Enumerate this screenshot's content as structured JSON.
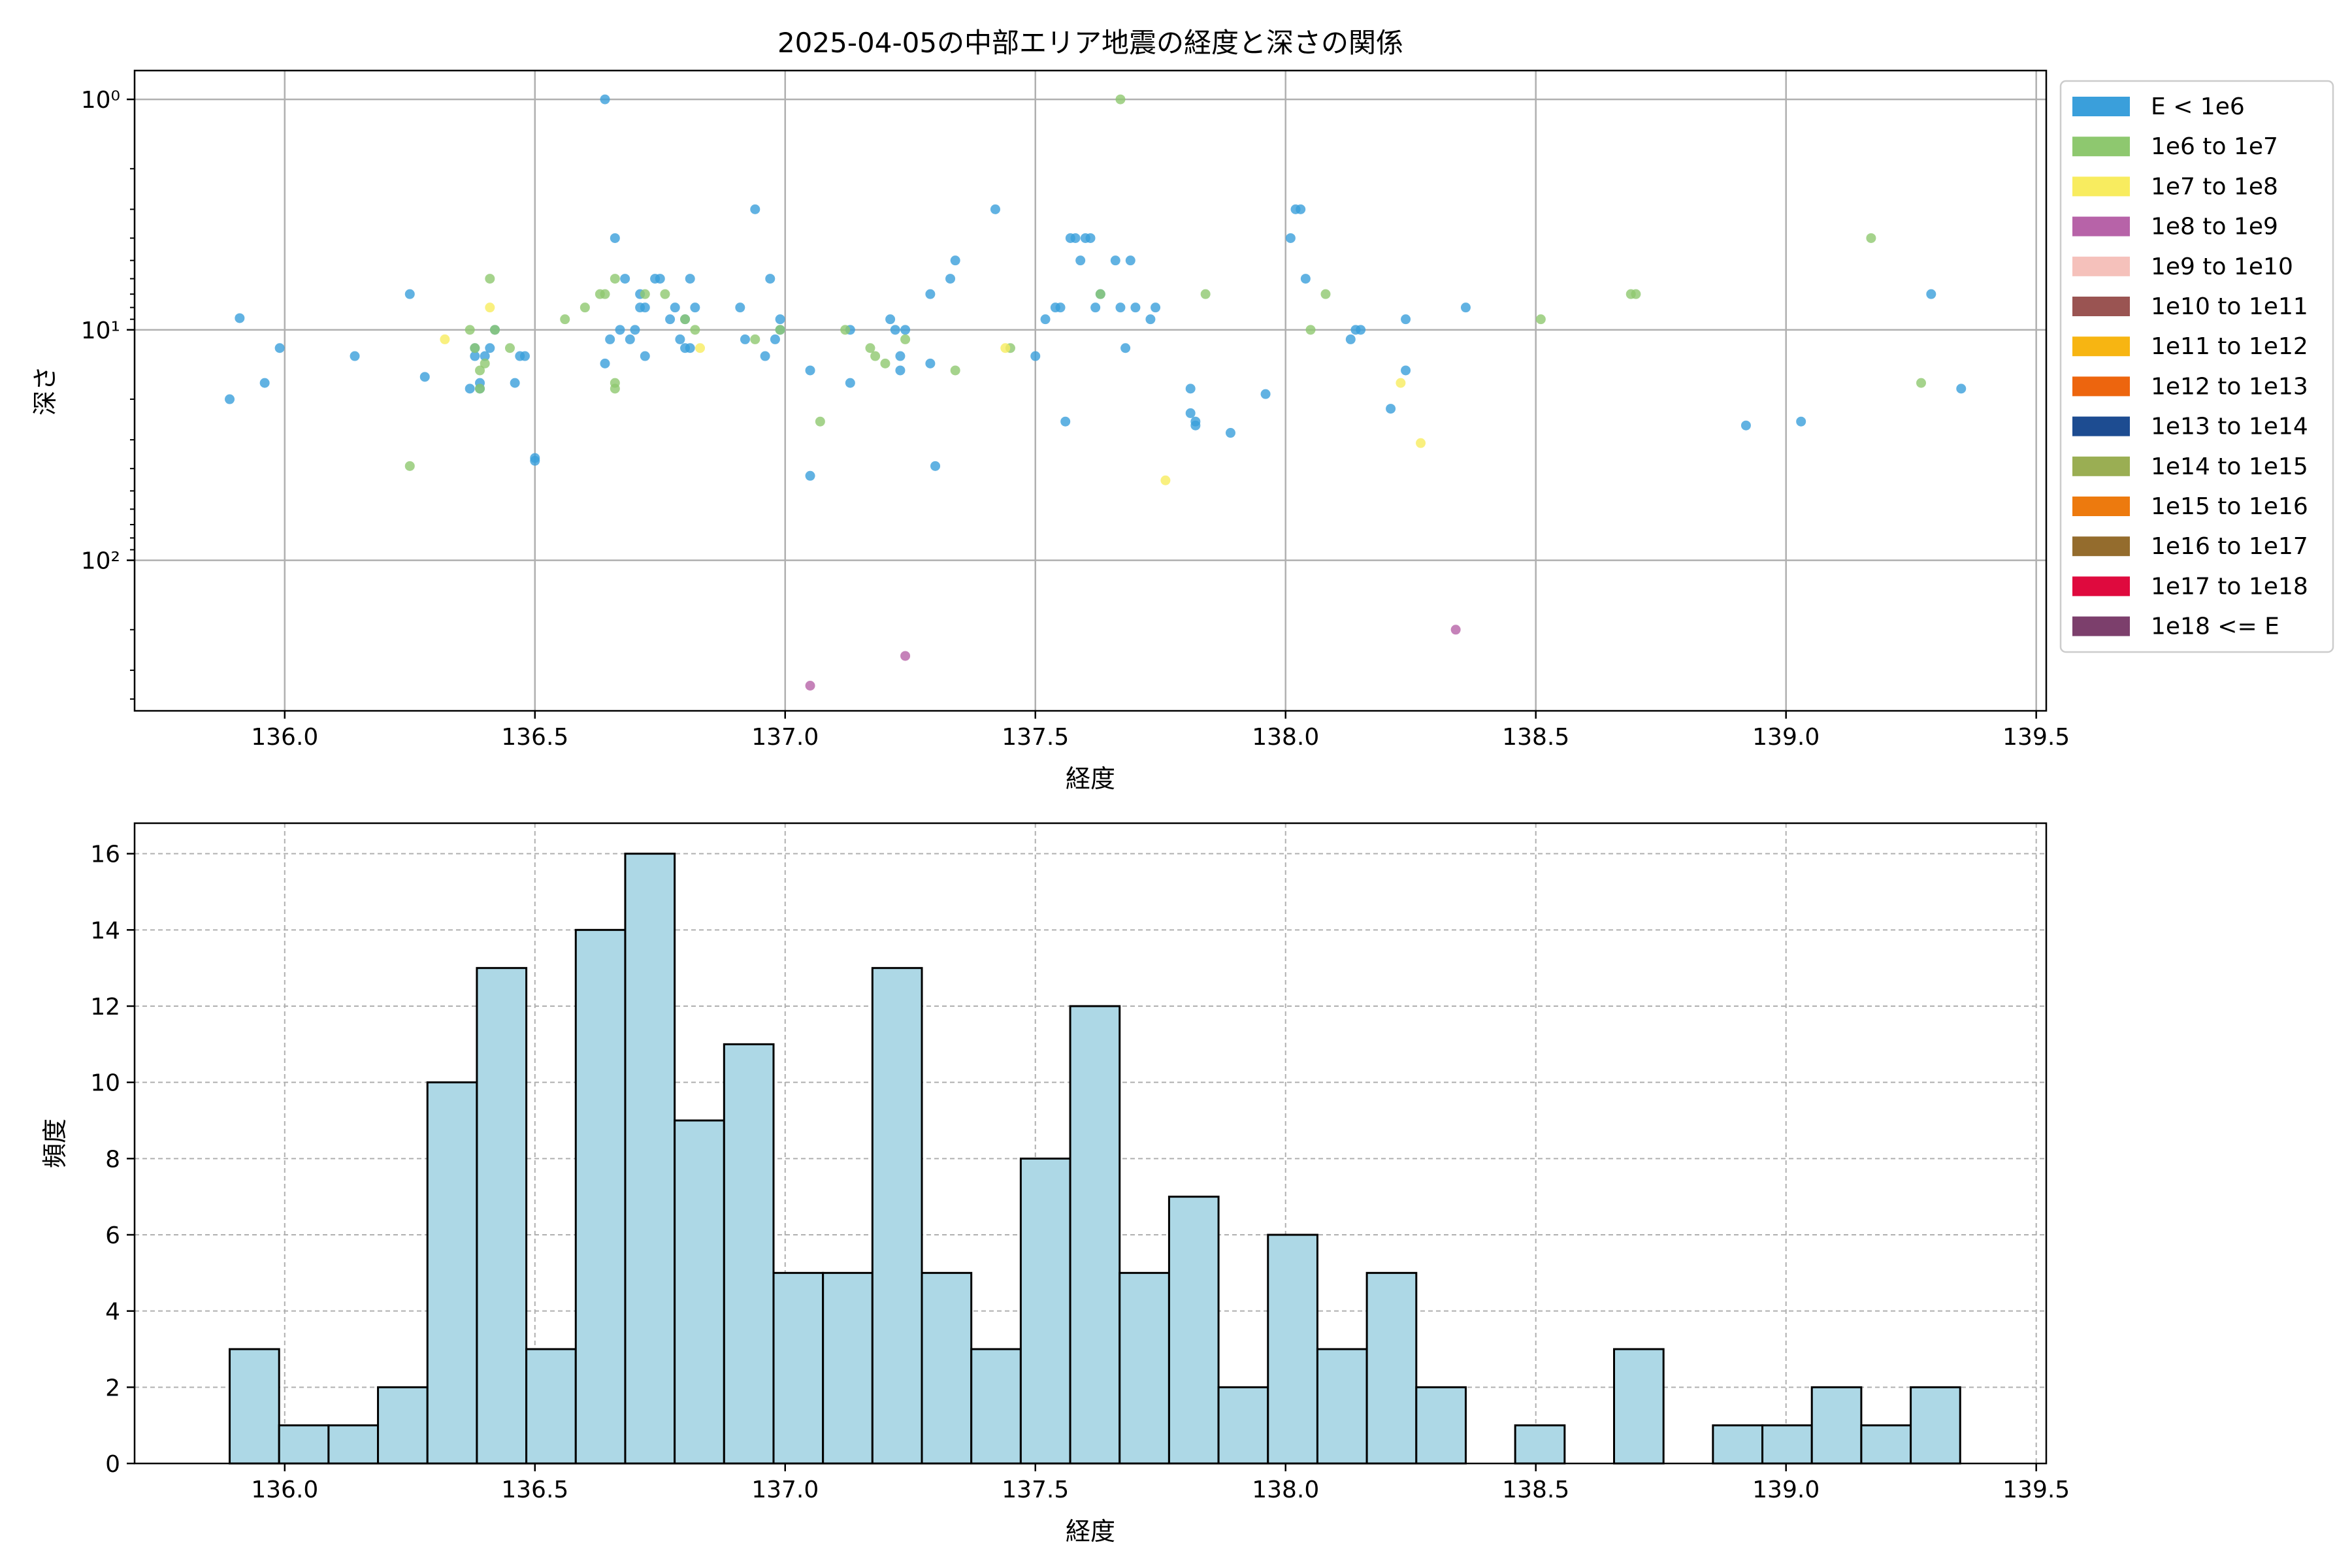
{
  "chart_data": [
    {
      "type": "scatter",
      "title": "2025-04-05の中部エリア地震の経度と深さの関係",
      "xlabel": "経度",
      "ylabel": "深さ",
      "xlim": [
        135.7,
        139.52
      ],
      "ylim": [
        450,
        0.75
      ],
      "yscale": "log",
      "y_inverted": true,
      "xticks": [
        136.0,
        136.5,
        137.0,
        137.5,
        138.0,
        138.5,
        139.0,
        139.5
      ],
      "xtick_labels": [
        "136.0",
        "136.5",
        "137.0",
        "137.5",
        "138.0",
        "138.5",
        "139.0",
        "139.5"
      ],
      "yticks": [
        1,
        10,
        100
      ],
      "ytick_labels": [
        "10⁰",
        "10¹",
        "10²"
      ],
      "grid": true,
      "legend_position": "outside-right",
      "legend": [
        {
          "label": "E < 1e6",
          "color": "#3a9fdb"
        },
        {
          "label": "1e6 to 1e7",
          "color": "#8ec86f"
        },
        {
          "label": "1e7 to 1e8",
          "color": "#f8ec5f"
        },
        {
          "label": "1e8 to 1e9",
          "color": "#b763a8"
        },
        {
          "label": "1e9 to 1e10",
          "color": "#f5c1bb"
        },
        {
          "label": "1e10 to 1e11",
          "color": "#9a5452"
        },
        {
          "label": "1e11 to 1e12",
          "color": "#f7b512"
        },
        {
          "label": "1e12 to 1e13",
          "color": "#ed650e"
        },
        {
          "label": "1e13 to 1e14",
          "color": "#1d4c91"
        },
        {
          "label": "1e14 to 1e15",
          "color": "#9aae53"
        },
        {
          "label": "1e15 to 1e16",
          "color": "#ed7a0e"
        },
        {
          "label": "1e16 to 1e17",
          "color": "#946c2d"
        },
        {
          "label": "1e17 to 1e18",
          "color": "#df0a3e"
        },
        {
          "label": "1e18 <= E",
          "color": "#7c3f6c"
        }
      ],
      "series": [
        {
          "name": "E < 1e6",
          "color": "#3a9fdb",
          "points": [
            [
              135.89,
              20
            ],
            [
              135.91,
              8.9
            ],
            [
              135.96,
              17
            ],
            [
              135.99,
              12
            ],
            [
              136.14,
              13
            ],
            [
              136.25,
              7
            ],
            [
              136.28,
              16
            ],
            [
              136.37,
              18
            ],
            [
              136.38,
              13
            ],
            [
              136.38,
              12
            ],
            [
              136.39,
              17
            ],
            [
              136.39,
              18
            ],
            [
              136.4,
              13
            ],
            [
              136.41,
              12
            ],
            [
              136.42,
              10
            ],
            [
              136.46,
              17
            ],
            [
              136.47,
              13
            ],
            [
              136.48,
              13
            ],
            [
              136.5,
              36
            ],
            [
              136.5,
              37
            ],
            [
              136.64,
              1
            ],
            [
              136.64,
              14
            ],
            [
              136.65,
              11
            ],
            [
              136.66,
              4
            ],
            [
              136.67,
              10
            ],
            [
              136.68,
              6
            ],
            [
              136.69,
              11
            ],
            [
              136.7,
              10
            ],
            [
              136.71,
              8
            ],
            [
              136.71,
              7
            ],
            [
              136.72,
              8
            ],
            [
              136.72,
              13
            ],
            [
              136.74,
              6
            ],
            [
              136.75,
              6
            ],
            [
              136.77,
              9
            ],
            [
              136.78,
              8
            ],
            [
              136.79,
              11
            ],
            [
              136.8,
              9
            ],
            [
              136.8,
              12
            ],
            [
              136.81,
              12
            ],
            [
              136.81,
              6
            ],
            [
              136.82,
              8
            ],
            [
              136.91,
              8
            ],
            [
              136.92,
              11
            ],
            [
              136.94,
              3
            ],
            [
              136.96,
              13
            ],
            [
              136.97,
              6
            ],
            [
              136.98,
              11
            ],
            [
              136.99,
              10
            ],
            [
              136.99,
              9
            ],
            [
              137.05,
              15
            ],
            [
              137.05,
              43
            ],
            [
              137.13,
              17
            ],
            [
              137.13,
              10
            ],
            [
              137.21,
              9
            ],
            [
              137.22,
              10
            ],
            [
              137.23,
              13
            ],
            [
              137.23,
              15
            ],
            [
              137.24,
              10
            ],
            [
              137.29,
              7
            ],
            [
              137.29,
              14
            ],
            [
              137.3,
              39
            ],
            [
              137.33,
              6
            ],
            [
              137.34,
              5
            ],
            [
              137.42,
              3
            ],
            [
              137.5,
              13
            ],
            [
              137.52,
              9
            ],
            [
              137.54,
              8
            ],
            [
              137.55,
              8
            ],
            [
              137.56,
              25
            ],
            [
              137.57,
              4
            ],
            [
              137.58,
              4
            ],
            [
              137.59,
              5
            ],
            [
              137.6,
              4
            ],
            [
              137.61,
              4
            ],
            [
              137.62,
              8
            ],
            [
              137.63,
              7
            ],
            [
              137.66,
              5
            ],
            [
              137.67,
              8
            ],
            [
              137.68,
              12
            ],
            [
              137.69,
              5
            ],
            [
              137.7,
              8
            ],
            [
              137.73,
              9
            ],
            [
              137.74,
              8
            ],
            [
              137.81,
              18
            ],
            [
              137.81,
              23
            ],
            [
              137.82,
              25
            ],
            [
              137.82,
              26
            ],
            [
              137.89,
              28
            ],
            [
              137.96,
              19
            ],
            [
              138.01,
              4
            ],
            [
              138.02,
              3
            ],
            [
              138.03,
              3
            ],
            [
              138.04,
              6
            ],
            [
              138.13,
              11
            ],
            [
              138.14,
              10
            ],
            [
              138.15,
              10
            ],
            [
              138.21,
              22
            ],
            [
              138.24,
              15
            ],
            [
              138.24,
              9
            ],
            [
              138.36,
              8
            ],
            [
              138.92,
              26
            ],
            [
              139.03,
              25
            ],
            [
              139.29,
              7
            ],
            [
              139.35,
              18
            ]
          ]
        },
        {
          "name": "1e6 to 1e7",
          "color": "#8ec86f",
          "points": [
            [
              136.25,
              39
            ],
            [
              136.37,
              10
            ],
            [
              136.38,
              12
            ],
            [
              136.39,
              18
            ],
            [
              136.39,
              15
            ],
            [
              136.4,
              14
            ],
            [
              136.41,
              6
            ],
            [
              136.42,
              10
            ],
            [
              136.45,
              12
            ],
            [
              136.56,
              9
            ],
            [
              136.6,
              8
            ],
            [
              136.63,
              7
            ],
            [
              136.64,
              7
            ],
            [
              136.66,
              17
            ],
            [
              136.66,
              18
            ],
            [
              136.66,
              6
            ],
            [
              136.72,
              7
            ],
            [
              136.76,
              7
            ],
            [
              136.8,
              9
            ],
            [
              136.82,
              10
            ],
            [
              136.94,
              11
            ],
            [
              136.99,
              10
            ],
            [
              137.07,
              25
            ],
            [
              137.12,
              10
            ],
            [
              137.17,
              12
            ],
            [
              137.18,
              13
            ],
            [
              137.2,
              14
            ],
            [
              137.24,
              11
            ],
            [
              137.34,
              15
            ],
            [
              137.45,
              12
            ],
            [
              137.63,
              7
            ],
            [
              137.67,
              1
            ],
            [
              137.84,
              7
            ],
            [
              138.05,
              10
            ],
            [
              138.08,
              7
            ],
            [
              138.51,
              9
            ],
            [
              138.69,
              7
            ],
            [
              138.7,
              7
            ],
            [
              139.17,
              4
            ],
            [
              139.27,
              17
            ]
          ]
        },
        {
          "name": "1e7 to 1e8",
          "color": "#f8ec5f",
          "points": [
            [
              136.32,
              11
            ],
            [
              136.41,
              8
            ],
            [
              136.83,
              12
            ],
            [
              137.44,
              12
            ],
            [
              137.76,
              45
            ],
            [
              138.23,
              17
            ],
            [
              138.27,
              31
            ]
          ]
        },
        {
          "name": "1e8 to 1e9",
          "color": "#b763a8",
          "points": [
            [
              137.05,
              350
            ],
            [
              137.24,
              260
            ],
            [
              138.34,
              200
            ]
          ]
        }
      ]
    },
    {
      "type": "bar",
      "title": "",
      "xlabel": "経度",
      "ylabel": "頻度",
      "xlim": [
        135.7,
        139.52
      ],
      "ylim": [
        0,
        16.8
      ],
      "xticks": [
        136.0,
        136.5,
        137.0,
        137.5,
        138.0,
        138.5,
        139.0,
        139.5
      ],
      "xtick_labels": [
        "136.0",
        "136.5",
        "137.0",
        "137.5",
        "138.0",
        "138.5",
        "139.0",
        "139.5"
      ],
      "yticks": [
        0,
        2,
        4,
        6,
        8,
        10,
        12,
        14,
        16
      ],
      "ytick_labels": [
        "0",
        "2",
        "4",
        "6",
        "8",
        "10",
        "12",
        "14",
        "16"
      ],
      "grid": true,
      "bar_color": "#add8e6",
      "bin_start": 135.89,
      "bin_width": 0.0988,
      "values": [
        3,
        1,
        1,
        2,
        10,
        13,
        3,
        14,
        16,
        9,
        11,
        5,
        5,
        13,
        5,
        3,
        8,
        12,
        5,
        7,
        2,
        6,
        3,
        5,
        2,
        0,
        1,
        0,
        3,
        0,
        1,
        1,
        2,
        1,
        2
      ]
    }
  ]
}
